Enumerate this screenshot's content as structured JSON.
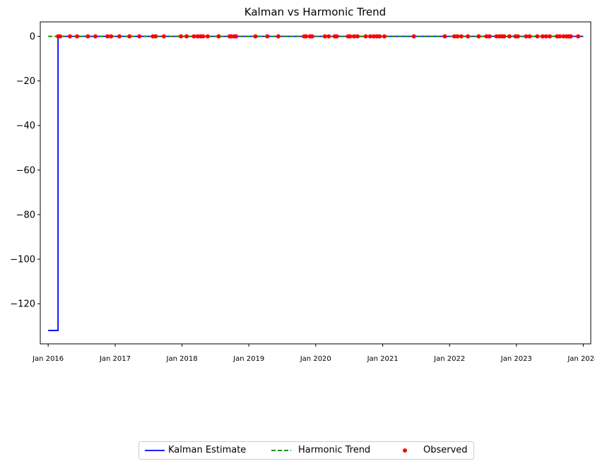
{
  "chart_data": {
    "type": "line",
    "title": "Kalman vs Harmonic Trend",
    "xlabel": "",
    "ylabel": "",
    "x_type": "date",
    "xlim": [
      "2015-11-19",
      "2024-02-11"
    ],
    "ylim": [
      -138,
      6.5
    ],
    "x_ticks": [
      "2016-01-01",
      "2017-01-01",
      "2018-01-01",
      "2019-01-01",
      "2020-01-01",
      "2021-01-01",
      "2022-01-01",
      "2023-01-01",
      "2024-01-01"
    ],
    "x_tick_labels": [
      "Jan 2016",
      "Jan 2017",
      "Jan 2018",
      "Jan 2019",
      "Jan 2020",
      "Jan 2021",
      "Jan 2022",
      "Jan 2023",
      "Jan 2024"
    ],
    "y_ticks": [
      0,
      -20,
      -40,
      -60,
      -80,
      -100,
      -120
    ],
    "y_tick_labels": [
      "0",
      "−20",
      "−40",
      "−60",
      "−80",
      "−100",
      "−120"
    ],
    "grid": false,
    "legend_position": "bottom-center",
    "series": [
      {
        "name": "Kalman Estimate",
        "style": "solid",
        "color": "#0000ff",
        "points": [
          [
            "2016-01-01",
            -132
          ],
          [
            "2016-02-24",
            -132
          ],
          [
            "2016-02-24",
            0
          ],
          [
            "2024-01-01",
            0
          ]
        ]
      },
      {
        "name": "Harmonic Trend",
        "style": "dashed",
        "color": "#008000",
        "points": [
          [
            "2016-01-01",
            0
          ],
          [
            "2024-01-01",
            0
          ]
        ]
      },
      {
        "name": "Observed",
        "style": "scatter",
        "color": "#ff0000",
        "points": [
          [
            "2016-02-24",
            0
          ],
          [
            "2016-03-06",
            0
          ],
          [
            "2016-04-29",
            0
          ],
          [
            "2016-06-07",
            0
          ],
          [
            "2016-08-05",
            0
          ],
          [
            "2016-09-15",
            0
          ],
          [
            "2016-11-20",
            0
          ],
          [
            "2016-12-10",
            0
          ],
          [
            "2017-01-24",
            0
          ],
          [
            "2017-03-20",
            0
          ],
          [
            "2017-05-13",
            0
          ],
          [
            "2017-07-26",
            0
          ],
          [
            "2017-08-10",
            0
          ],
          [
            "2017-09-24",
            0
          ],
          [
            "2017-12-26",
            0
          ],
          [
            "2018-01-26",
            0
          ],
          [
            "2018-03-07",
            0
          ],
          [
            "2018-03-27",
            0
          ],
          [
            "2018-04-12",
            0
          ],
          [
            "2018-04-26",
            0
          ],
          [
            "2018-05-21",
            0
          ],
          [
            "2018-07-20",
            0
          ],
          [
            "2018-09-18",
            0
          ],
          [
            "2018-09-28",
            0
          ],
          [
            "2018-10-14",
            0
          ],
          [
            "2018-10-23",
            0
          ],
          [
            "2019-02-06",
            0
          ],
          [
            "2019-04-12",
            0
          ],
          [
            "2019-06-11",
            0
          ],
          [
            "2019-10-30",
            0
          ],
          [
            "2019-11-10",
            0
          ],
          [
            "2019-12-01",
            0
          ],
          [
            "2019-12-12",
            0
          ],
          [
            "2020-02-20",
            0
          ],
          [
            "2020-03-12",
            0
          ],
          [
            "2020-04-14",
            0
          ],
          [
            "2020-04-25",
            0
          ],
          [
            "2020-06-26",
            0
          ],
          [
            "2020-07-07",
            0
          ],
          [
            "2020-07-28",
            0
          ],
          [
            "2020-08-16",
            0
          ],
          [
            "2020-09-30",
            0
          ],
          [
            "2020-10-25",
            0
          ],
          [
            "2020-11-13",
            0
          ],
          [
            "2020-11-30",
            0
          ],
          [
            "2020-12-15",
            0
          ],
          [
            "2021-01-10",
            0
          ],
          [
            "2021-06-20",
            0
          ],
          [
            "2021-12-06",
            0
          ],
          [
            "2022-01-27",
            0
          ],
          [
            "2022-02-13",
            0
          ],
          [
            "2022-03-06",
            0
          ],
          [
            "2022-04-11",
            0
          ],
          [
            "2022-06-09",
            0
          ],
          [
            "2022-07-21",
            0
          ],
          [
            "2022-08-07",
            0
          ],
          [
            "2022-09-14",
            0
          ],
          [
            "2022-10-01",
            0
          ],
          [
            "2022-10-15",
            0
          ],
          [
            "2022-10-26",
            0
          ],
          [
            "2022-11-24",
            0
          ],
          [
            "2022-12-27",
            0
          ],
          [
            "2023-01-09",
            0
          ],
          [
            "2023-02-23",
            0
          ],
          [
            "2023-03-14",
            0
          ],
          [
            "2023-04-25",
            0
          ],
          [
            "2023-05-24",
            0
          ],
          [
            "2023-06-12",
            0
          ],
          [
            "2023-07-02",
            0
          ],
          [
            "2023-08-11",
            0
          ],
          [
            "2023-08-26",
            0
          ],
          [
            "2023-09-15",
            0
          ],
          [
            "2023-10-02",
            0
          ],
          [
            "2023-10-14",
            0
          ],
          [
            "2023-10-25",
            0
          ],
          [
            "2023-12-04",
            0
          ]
        ]
      }
    ]
  },
  "legend": {
    "items": [
      {
        "label": "Kalman Estimate",
        "icon": "line-solid",
        "color": "#0000ff"
      },
      {
        "label": "Harmonic Trend",
        "icon": "line-dashed",
        "color": "#008000"
      },
      {
        "label": "Observed",
        "icon": "dot",
        "color": "#ff0000"
      }
    ]
  }
}
